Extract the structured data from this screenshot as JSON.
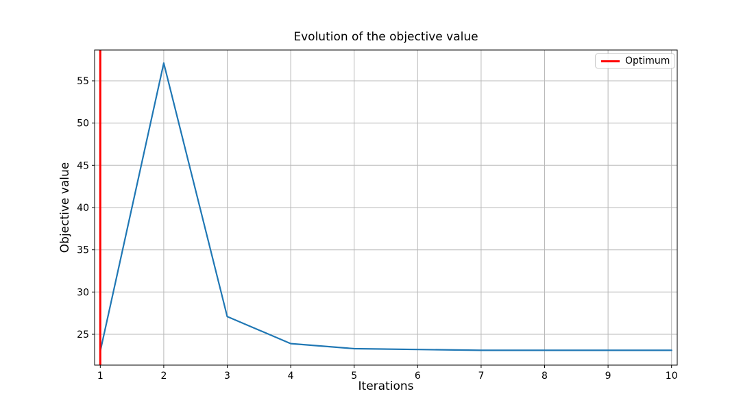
{
  "chart_data": {
    "type": "line",
    "title": "Evolution of the objective value",
    "xlabel": "Iterations",
    "ylabel": "Objective value",
    "x": [
      1,
      2,
      3,
      4,
      5,
      6,
      7,
      8,
      9,
      10
    ],
    "series": [
      {
        "name": "Objective value",
        "color": "#1f77b4",
        "values": [
          23.0,
          57.1,
          27.1,
          23.9,
          23.3,
          23.2,
          23.1,
          23.1,
          23.1,
          23.1
        ]
      }
    ],
    "vline": {
      "x": 1,
      "color": "#ff0000",
      "label": "Optimum"
    },
    "legend": {
      "position": "upper right",
      "entries": [
        "Optimum"
      ]
    },
    "xticks": [
      1,
      2,
      3,
      4,
      5,
      6,
      7,
      8,
      9,
      10
    ],
    "yticks": [
      25,
      30,
      35,
      40,
      45,
      50,
      55
    ],
    "xlim": [
      0.91,
      10.09
    ],
    "ylim": [
      21.35,
      58.65
    ],
    "grid": true,
    "grid_color": "#b8b8b8",
    "spine_color": "#000000",
    "background": "#ffffff"
  }
}
